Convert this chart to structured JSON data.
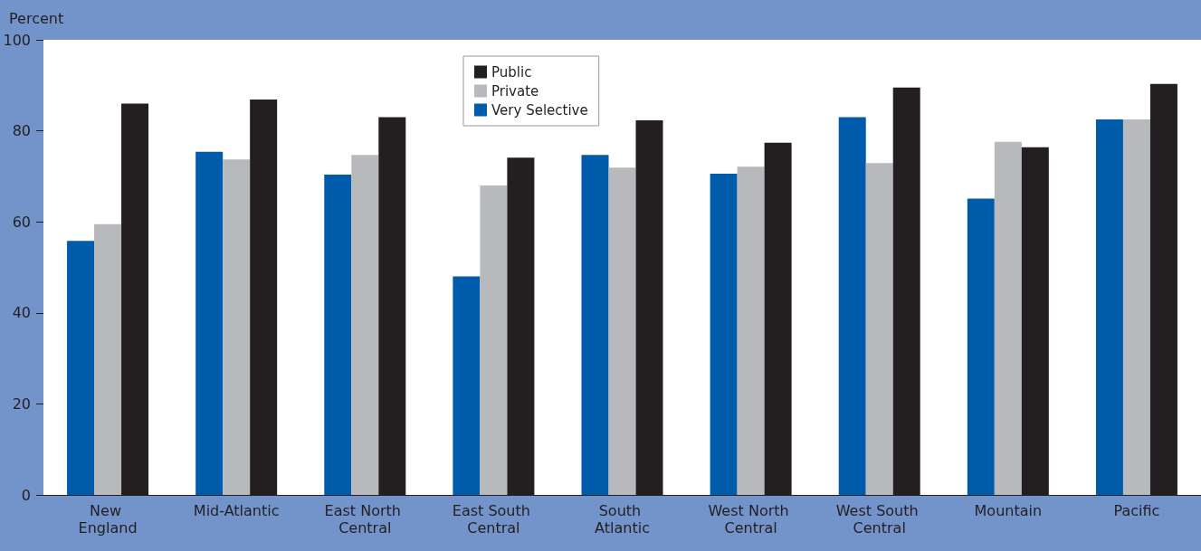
{
  "chart_data": {
    "type": "bar",
    "ylabel": "Percent",
    "categories": [
      "New England",
      "Mid-Atlantic",
      "East North Central",
      "East South Central",
      "South Atlantic",
      "West North Central",
      "West South Central",
      "Mountain",
      "Pacific"
    ],
    "series": [
      {
        "name": "Very Selective",
        "color": "#005baa",
        "values": [
          55.8,
          75.4,
          70.4,
          48.0,
          74.7,
          70.6,
          83.0,
          65.1,
          82.5
        ]
      },
      {
        "name": "Private",
        "color": "#b8b9bc",
        "values": [
          59.5,
          73.7,
          74.7,
          68.0,
          71.9,
          72.1,
          72.9,
          77.6,
          82.5
        ]
      },
      {
        "name": "Public",
        "color": "#231f20",
        "values": [
          86.0,
          86.9,
          83.0,
          74.1,
          82.3,
          77.4,
          89.5,
          76.4,
          90.3
        ]
      }
    ],
    "ylim": [
      0,
      100
    ],
    "yticks": [
      0,
      20,
      40,
      60,
      80,
      100
    ],
    "grid": false,
    "legend": "top"
  }
}
